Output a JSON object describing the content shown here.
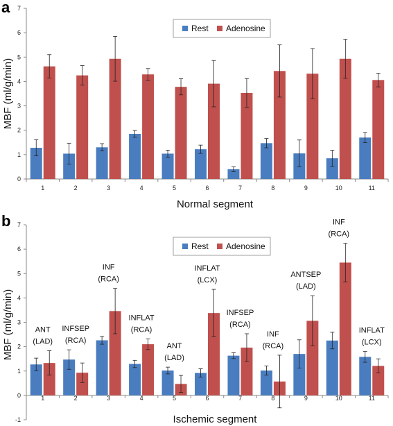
{
  "colors": {
    "rest": "#4a7dbf",
    "adenosine": "#c0504d",
    "error_bar": "#222222",
    "axis": "#888888"
  },
  "chart_data": [
    {
      "type": "bar",
      "panel": "a",
      "xlabel": "Normal segment",
      "ylabel": "MBF (ml/g/min)",
      "ylim": [
        0,
        7
      ],
      "yticks": [
        0,
        1,
        2,
        3,
        4,
        5,
        6,
        7
      ],
      "categories": [
        "1",
        "2",
        "3",
        "4",
        "5",
        "6",
        "7",
        "8",
        "9",
        "10",
        "11"
      ],
      "grid": false,
      "legend_position": "top-center",
      "series": [
        {
          "name": "Rest",
          "values": [
            1.28,
            1.04,
            1.3,
            1.85,
            1.04,
            1.22,
            0.4,
            1.47,
            1.05,
            0.85,
            1.7
          ],
          "errors": [
            0.33,
            0.43,
            0.15,
            0.14,
            0.14,
            0.17,
            0.1,
            0.19,
            0.55,
            0.33,
            0.21
          ]
        },
        {
          "name": "Adenosine",
          "values": [
            4.62,
            4.25,
            4.93,
            4.29,
            3.78,
            3.91,
            3.53,
            4.43,
            4.32,
            4.93,
            4.06
          ],
          "errors": [
            0.48,
            0.4,
            0.92,
            0.24,
            0.33,
            0.95,
            0.59,
            1.07,
            1.03,
            0.8,
            0.28
          ]
        }
      ]
    },
    {
      "type": "bar",
      "panel": "b",
      "xlabel": "Ischemic segment",
      "ylabel": "MBF (ml/g/min)",
      "ylim": [
        -1,
        7
      ],
      "yticks": [
        -1,
        0,
        1,
        2,
        3,
        4,
        5,
        6,
        7
      ],
      "categories": [
        "1",
        "2",
        "3",
        "4",
        "5",
        "6",
        "7",
        "8",
        "9",
        "10",
        "11"
      ],
      "grid": false,
      "legend_position": "top-center",
      "segment_labels": [
        [
          "ANT",
          "(LAD)"
        ],
        [
          "INFSEP",
          "(RCA)"
        ],
        [
          "INF",
          "(RCA)"
        ],
        [
          "INFLAT",
          "(RCA)"
        ],
        [
          "ANT",
          "(LAD)"
        ],
        [
          "INFLAT",
          "(LCX)"
        ],
        [
          "INFSEP",
          "(RCA)"
        ],
        [
          "INF",
          "(RCA)"
        ],
        [
          "ANTSEP",
          "(LAD)"
        ],
        [
          "INF",
          "(RCA)"
        ],
        [
          "INFLAT",
          "(LCX)"
        ]
      ],
      "series": [
        {
          "name": "Rest",
          "values": [
            1.27,
            1.47,
            2.26,
            1.29,
            1.02,
            0.92,
            1.63,
            1.02,
            1.7,
            2.25,
            1.58
          ],
          "errors": [
            0.26,
            0.4,
            0.16,
            0.15,
            0.14,
            0.17,
            0.12,
            0.19,
            0.58,
            0.34,
            0.22
          ]
        },
        {
          "name": "Adenosine",
          "values": [
            1.33,
            0.93,
            3.46,
            2.1,
            0.47,
            3.38,
            1.96,
            0.57,
            3.06,
            5.45,
            1.21
          ],
          "errors": [
            0.5,
            0.4,
            0.93,
            0.22,
            0.35,
            0.97,
            0.57,
            1.08,
            1.03,
            0.79,
            0.29
          ]
        }
      ]
    }
  ]
}
